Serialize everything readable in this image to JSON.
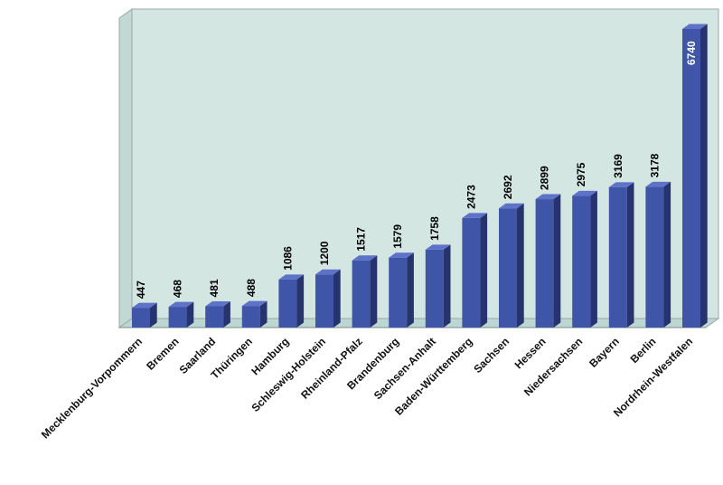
{
  "chart_data": {
    "type": "bar",
    "categories": [
      "Mecklenburg-Vorpommern",
      "Bremen",
      "Saarland",
      "Thüringen",
      "Hamburg",
      "Schleswig-Holstein",
      "Rheinland-Pfalz",
      "Brandenburg",
      "Sachsen-Anhalt",
      "Baden-Württemberg",
      "Sachsen",
      "Hessen",
      "Niedersachsen",
      "Bayern",
      "Berlin",
      "Nordrhein-Westfalen"
    ],
    "values": [
      447,
      468,
      481,
      488,
      1086,
      1200,
      1517,
      1579,
      1758,
      2473,
      2692,
      2899,
      2975,
      3169,
      3178,
      6740
    ],
    "value_labels": [
      "447",
      "468",
      "481",
      "488",
      "1086",
      "1200",
      "1517",
      "1579",
      "1758",
      "2473",
      "2692",
      "2899",
      "2975",
      "3169",
      "3178",
      "6740"
    ],
    "title": "",
    "xlabel": "",
    "ylabel": "",
    "ylim": [
      0,
      7000
    ],
    "grid": false,
    "legend": "none",
    "style": "3d",
    "colors": {
      "bar_front": "#3f55a8",
      "bar_top": "#5e72c8",
      "bar_side": "#26336f",
      "back_wall": "#d3e6e2",
      "floor": "#bcd7d2",
      "value_label": "#000000",
      "value_label_inside": "#ffffff"
    }
  }
}
